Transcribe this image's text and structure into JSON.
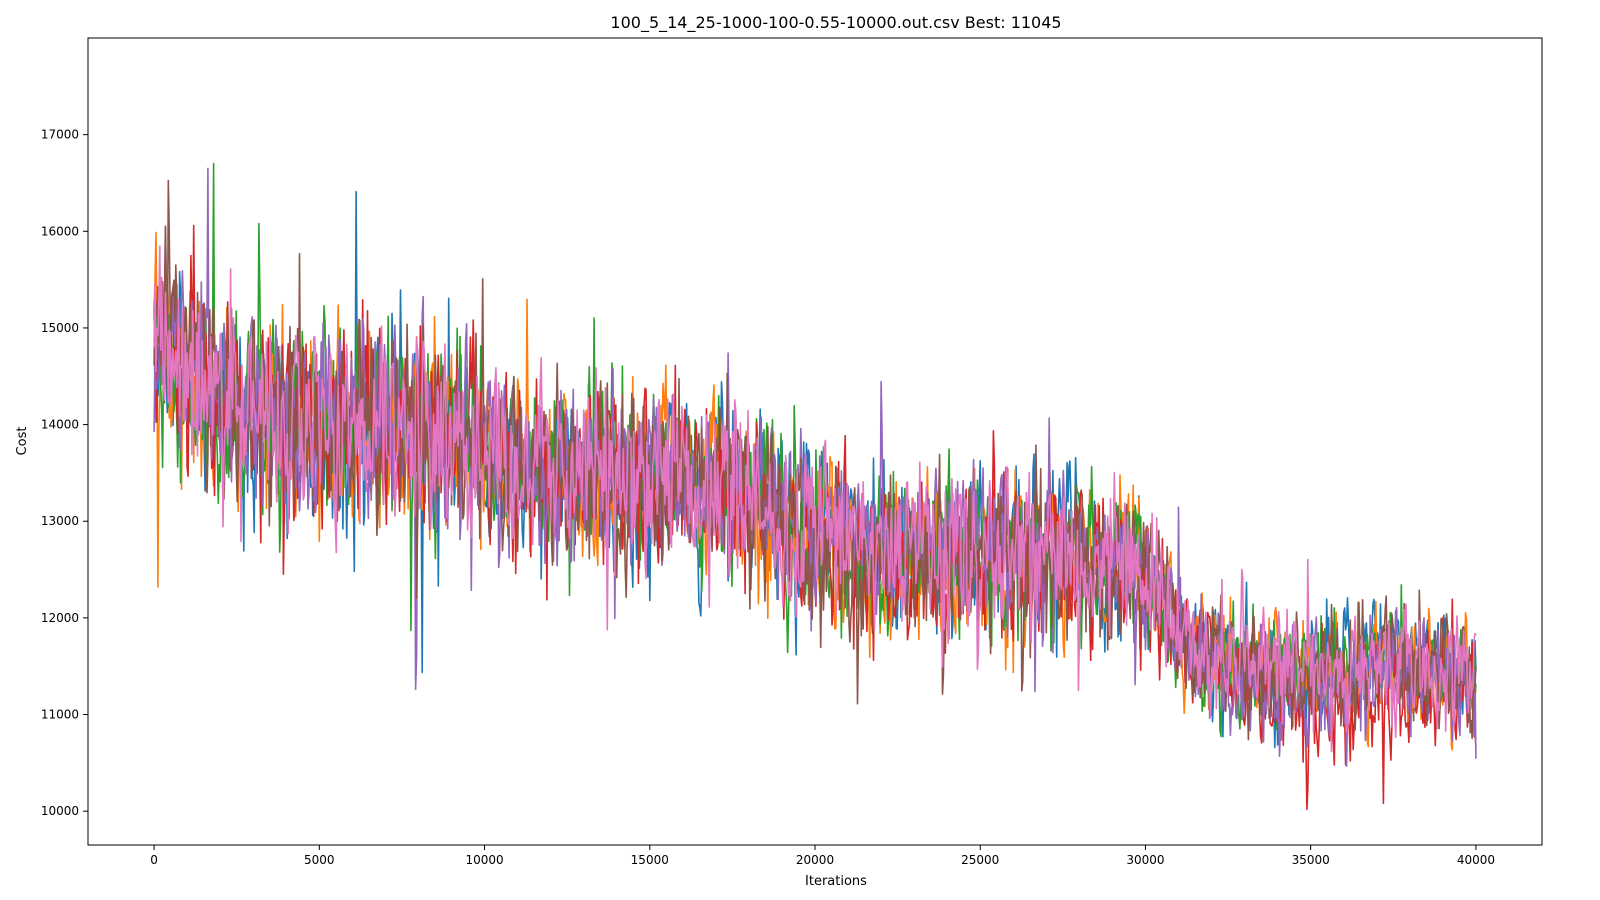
{
  "chart_data": {
    "type": "line",
    "title": "100_5_14_25-1000-100-0.55-10000.out.csv Best: 11045",
    "xlabel": "Iterations",
    "ylabel": "Cost",
    "xlim": [
      -2000,
      42000
    ],
    "ylim": [
      9650,
      18000
    ],
    "xticks": [
      0,
      5000,
      10000,
      15000,
      20000,
      25000,
      30000,
      35000,
      40000
    ],
    "xtick_labels": [
      "0",
      "5000",
      "10000",
      "15000",
      "20000",
      "25000",
      "30000",
      "35000",
      "40000"
    ],
    "yticks": [
      10000,
      11000,
      12000,
      13000,
      14000,
      15000,
      16000,
      17000
    ],
    "ytick_labels": [
      "10000",
      "11000",
      "12000",
      "13000",
      "14000",
      "15000",
      "16000",
      "17000"
    ],
    "grid": false,
    "legend": "none",
    "x": [
      0,
      2000,
      4000,
      6000,
      8000,
      10000,
      12000,
      14000,
      16000,
      18000,
      20000,
      22000,
      24000,
      26000,
      28000,
      30000,
      31000,
      32000,
      34000,
      36000,
      38000,
      40000
    ],
    "series": [
      {
        "color": "#1f77b4",
        "values": [
          14800,
          14200,
          14000,
          13900,
          14100,
          13700,
          13600,
          13400,
          13500,
          13300,
          13000,
          12600,
          12600,
          12800,
          12700,
          12400,
          11800,
          11600,
          11400,
          11500,
          11600,
          11500
        ]
      },
      {
        "color": "#ff7f0e",
        "values": [
          15100,
          14100,
          13900,
          14000,
          14000,
          13800,
          13500,
          13400,
          13500,
          13200,
          12700,
          12500,
          12500,
          12500,
          12700,
          12500,
          11800,
          11600,
          11500,
          11400,
          11400,
          11300
        ]
      },
      {
        "color": "#2ca02c",
        "values": [
          14600,
          14200,
          14000,
          14100,
          13900,
          13700,
          13600,
          13500,
          13400,
          13300,
          12800,
          12500,
          12700,
          12600,
          12800,
          12600,
          11700,
          11500,
          11500,
          11600,
          11500,
          11400
        ]
      },
      {
        "color": "#d62728",
        "values": [
          14700,
          14300,
          14100,
          13900,
          14000,
          13800,
          13500,
          13500,
          13300,
          13200,
          12900,
          12600,
          12500,
          12600,
          12600,
          12400,
          11900,
          11500,
          11200,
          11100,
          11300,
          11300
        ]
      },
      {
        "color": "#9467bd",
        "values": [
          15000,
          14200,
          14000,
          14000,
          13900,
          13700,
          13500,
          13400,
          13500,
          13400,
          12900,
          12800,
          12900,
          12700,
          12600,
          12400,
          11800,
          11500,
          11200,
          11300,
          11500,
          11400
        ]
      },
      {
        "color": "#8c564b",
        "values": [
          15200,
          14300,
          14100,
          14000,
          14000,
          13800,
          13600,
          13400,
          13400,
          13300,
          12800,
          12500,
          12600,
          12600,
          12500,
          12500,
          11800,
          11600,
          11400,
          11500,
          11600,
          11300
        ]
      },
      {
        "color": "#e377c2",
        "values": [
          14900,
          14200,
          14000,
          14000,
          13900,
          13700,
          13500,
          13400,
          13400,
          13300,
          12900,
          12700,
          12600,
          12700,
          12600,
          12400,
          11900,
          11500,
          11500,
          11400,
          11500,
          11400
        ]
      }
    ],
    "noise_amplitude": [
      1000,
      1000,
      1100,
      1000,
      1000,
      900,
      900,
      900,
      900,
      900,
      900,
      850,
      850,
      850,
      850,
      750,
      600,
      600,
      600,
      600,
      600,
      600
    ]
  }
}
